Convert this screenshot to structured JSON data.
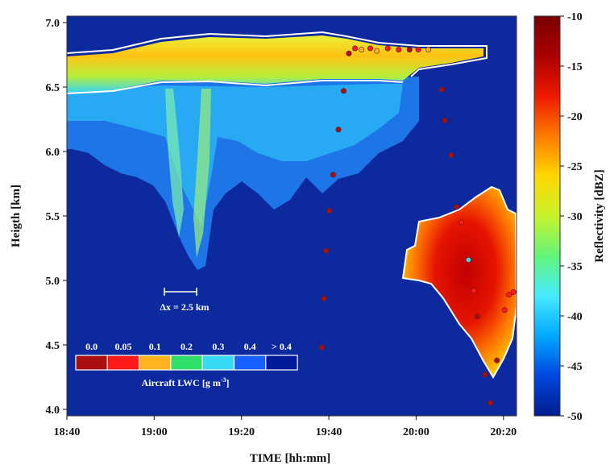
{
  "chart_data": {
    "type": "heatmap",
    "title": "",
    "xlabel": "TIME [hh:mm]",
    "ylabel": "Heigth [km]",
    "x_ticks": [
      "18:40",
      "19:00",
      "19:20",
      "19:40",
      "20:00",
      "20:20"
    ],
    "y_ticks": [
      "4.0",
      "4.5",
      "5.0",
      "5.5",
      "6.0",
      "6.5",
      "7.0"
    ],
    "x_range_minutes_after_1840": [
      0,
      103
    ],
    "y_range_km": [
      3.95,
      7.05
    ],
    "colorbar": {
      "label": "Reflectivity [dBZ]",
      "range": [
        -50,
        -10
      ],
      "ticks": [
        "-10",
        "-15",
        "-20",
        "-25",
        "-30",
        "-35",
        "-40",
        "-45",
        "-50"
      ],
      "colors": [
        "#001b8f",
        "#0047e0",
        "#00a8ff",
        "#45eaff",
        "#62f57a",
        "#c8f22b",
        "#ffd700",
        "#ff7a00",
        "#ee1a00",
        "#aa0000",
        "#7a0000"
      ]
    },
    "background_color": "#0c2a9e",
    "contour_color": "#ffffff",
    "scale_bar": {
      "label": "Δx = 2.5 km"
    },
    "lwc_legend": {
      "title": "Aircraft LWC [g m",
      "title_sup": "-3",
      "title_end": "]",
      "levels": [
        "0.0",
        "0.05",
        "0.1",
        "0.2",
        "0.3",
        "0.4",
        "> 0.4"
      ],
      "colors": [
        "#aa0f0f",
        "#ff1a1a",
        "#ffb41e",
        "#2ee06a",
        "#38d9f2",
        "#1a60ff",
        "#001a99"
      ]
    },
    "aircraft_points": [
      {
        "t": 58.4,
        "h": 4.48,
        "lwc_color": "#aa0f0f"
      },
      {
        "t": 58.9,
        "h": 4.86,
        "lwc_color": "#aa0f0f"
      },
      {
        "t": 59.4,
        "h": 5.23,
        "lwc_color": "#aa0f0f"
      },
      {
        "t": 60.1,
        "h": 5.54,
        "lwc_color": "#aa0f0f"
      },
      {
        "t": 61.0,
        "h": 5.82,
        "lwc_color": "#aa0f0f"
      },
      {
        "t": 62.2,
        "h": 6.17,
        "lwc_color": "#aa0f0f"
      },
      {
        "t": 63.4,
        "h": 6.47,
        "lwc_color": "#aa0f0f"
      },
      {
        "t": 64.6,
        "h": 6.76,
        "lwc_color": "#aa0f0f"
      },
      {
        "t": 66.0,
        "h": 6.8,
        "lwc_color": "#ff1a1a"
      },
      {
        "t": 67.5,
        "h": 6.79,
        "lwc_color": "#ffb41e"
      },
      {
        "t": 69.5,
        "h": 6.8,
        "lwc_color": "#ff1a1a"
      },
      {
        "t": 71.0,
        "h": 6.78,
        "lwc_color": "#ffb41e"
      },
      {
        "t": 73.5,
        "h": 6.8,
        "lwc_color": "#ff1a1a"
      },
      {
        "t": 76.0,
        "h": 6.79,
        "lwc_color": "#ff1a1a"
      },
      {
        "t": 78.5,
        "h": 6.79,
        "lwc_color": "#aa0f0f"
      },
      {
        "t": 80.5,
        "h": 6.79,
        "lwc_color": "#ff1a1a"
      },
      {
        "t": 82.8,
        "h": 6.79,
        "lwc_color": "#ffb41e"
      },
      {
        "t": 85.9,
        "h": 6.48,
        "lwc_color": "#aa0f0f"
      },
      {
        "t": 86.6,
        "h": 6.24,
        "lwc_color": "#aa0f0f"
      },
      {
        "t": 88.0,
        "h": 5.97,
        "lwc_color": "#aa0f0f"
      },
      {
        "t": 89.3,
        "h": 5.57,
        "lwc_color": "#aa0f0f"
      },
      {
        "t": 90.4,
        "h": 5.45,
        "lwc_color": "#ff1a1a"
      },
      {
        "t": 92.0,
        "h": 5.16,
        "lwc_color": "#38d9f2"
      },
      {
        "t": 93.2,
        "h": 4.92,
        "lwc_color": "#ff1a1a"
      },
      {
        "t": 94.0,
        "h": 4.72,
        "lwc_color": "#aa0f0f"
      },
      {
        "t": 95.8,
        "h": 4.27,
        "lwc_color": "#aa0f0f"
      },
      {
        "t": 97.0,
        "h": 4.05,
        "lwc_color": "#aa0f0f"
      },
      {
        "t": 98.5,
        "h": 4.38,
        "lwc_color": "#aa0f0f"
      },
      {
        "t": 100.3,
        "h": 4.77,
        "lwc_color": "#ff1a1a"
      },
      {
        "t": 101.3,
        "h": 4.89,
        "lwc_color": "#ff1a1a"
      },
      {
        "t": 102.3,
        "h": 4.91,
        "lwc_color": "#ff1a1a"
      }
    ]
  }
}
